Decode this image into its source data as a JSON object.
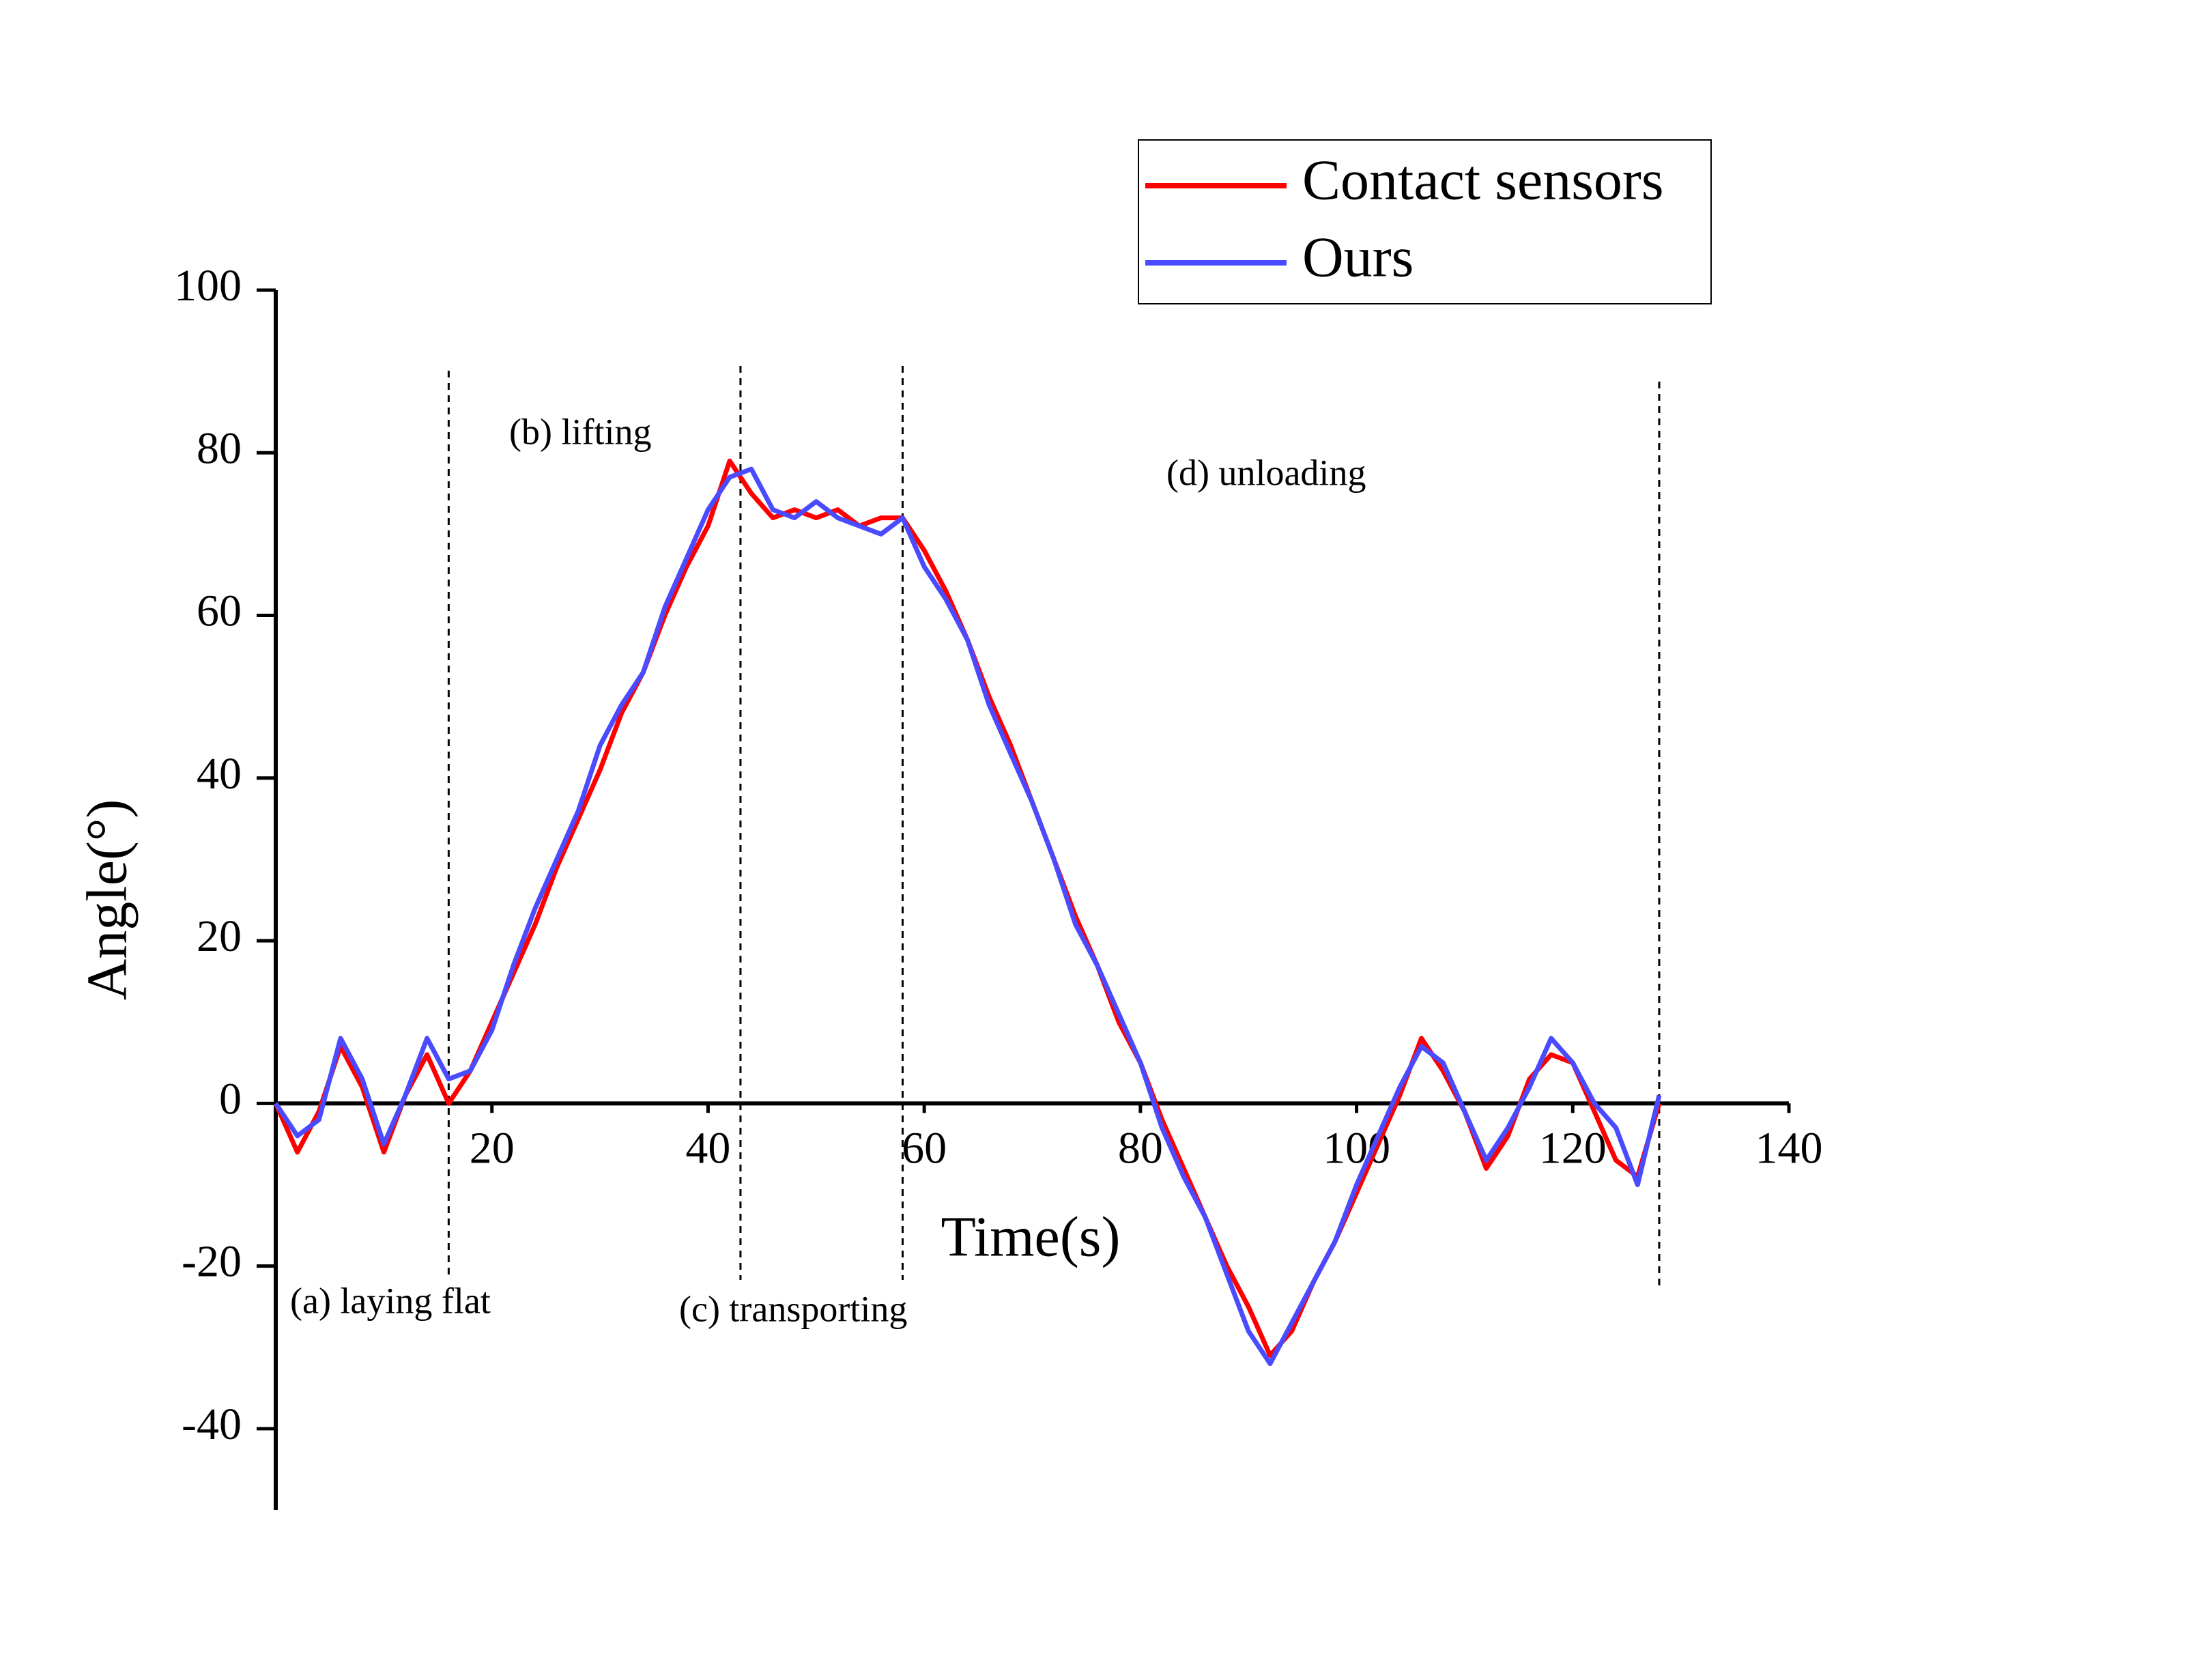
{
  "chart_data": {
    "type": "line",
    "x_label": "Time(s)",
    "y_label": "Angle(°)",
    "xlim": [
      0,
      140
    ],
    "ylim": [
      -50,
      100
    ],
    "xticks": [
      20,
      40,
      60,
      80,
      100,
      120,
      140
    ],
    "yticks": [
      -40,
      -20,
      0,
      20,
      40,
      60,
      80,
      100
    ],
    "legend": "top-right",
    "x": [
      0,
      2,
      4,
      6,
      8,
      10,
      12,
      14,
      16,
      18,
      20,
      22,
      24,
      26,
      28,
      30,
      32,
      34,
      36,
      38,
      40,
      42,
      44,
      46,
      48,
      50,
      52,
      54,
      56,
      58,
      60,
      62,
      64,
      66,
      68,
      70,
      72,
      74,
      76,
      78,
      80,
      82,
      84,
      86,
      88,
      90,
      92,
      94,
      96,
      98,
      100,
      102,
      104,
      106,
      108,
      110,
      112,
      114,
      116,
      118,
      120,
      122,
      124,
      126,
      128
    ],
    "series": [
      {
        "name": "Contact sensors",
        "color": "#ff0000",
        "values": [
          0,
          -6,
          -1,
          7,
          2,
          -6,
          1,
          6,
          0,
          4,
          10,
          16,
          22,
          29,
          35,
          41,
          48,
          53,
          60,
          66,
          71,
          79,
          75,
          72,
          73,
          72,
          73,
          71,
          72,
          72,
          68,
          63,
          57,
          50,
          44,
          37,
          30,
          23,
          17,
          10,
          5,
          -2,
          -8,
          -14,
          -20,
          -25,
          -31,
          -28,
          -22,
          -17,
          -11,
          -5,
          1,
          8,
          4,
          -1,
          -8,
          -4,
          3,
          6,
          5,
          -1,
          -7,
          -9,
          0
        ]
      },
      {
        "name": "Ours",
        "color": "#4a4aff",
        "values": [
          0,
          -4,
          -2,
          8,
          3,
          -5,
          1,
          8,
          3,
          4,
          9,
          17,
          24,
          30,
          36,
          44,
          49,
          53,
          61,
          67,
          73,
          77,
          78,
          73,
          72,
          74,
          72,
          71,
          70,
          72,
          66,
          62,
          57,
          49,
          43,
          37,
          30,
          22,
          17,
          11,
          5,
          -3,
          -9,
          -14,
          -21,
          -28,
          -32,
          -27,
          -22,
          -17,
          -10,
          -4,
          2,
          7,
          5,
          -1,
          -7,
          -3,
          2,
          8,
          5,
          0,
          -3,
          -10,
          1
        ]
      }
    ],
    "phase_boundaries": [
      16,
      43,
      58,
      128
    ],
    "annotations": [
      "(a) laying flat",
      "(b) lifting",
      "(c) transporting",
      "(d) unloading"
    ]
  }
}
